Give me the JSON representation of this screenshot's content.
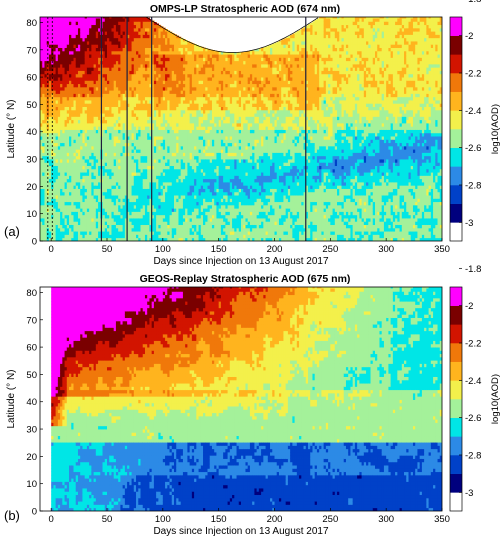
{
  "colors": {
    "levels": [
      "#ffffff",
      "#00007e",
      "#0041c8",
      "#2c8ae6",
      "#00e6e6",
      "#a4f19a",
      "#f3f04b",
      "#ffb41e",
      "#f0780a",
      "#d21400",
      "#7a0000",
      "#ff00ff"
    ]
  },
  "chart_data": [
    {
      "type": "heatmap",
      "panel_label": "(a)",
      "title": "OMPS-LP Stratospheric AOD (674 nm)",
      "xlabel": "Days since Injection on 13 August 2017",
      "ylabel": "Latitude (° N)",
      "xlim": [
        -10,
        350
      ],
      "ylim": [
        0,
        82
      ],
      "xticks": [
        0,
        50,
        100,
        150,
        200,
        250,
        300,
        350
      ],
      "yticks": [
        0,
        10,
        20,
        30,
        40,
        50,
        60,
        70,
        80
      ],
      "colorbar": {
        "label": "log10(AOD)",
        "ticks": [
          "-3",
          "-2.8",
          "-2.6",
          "-2.4",
          "-2.2",
          "-2",
          "-1.8"
        ]
      },
      "missing_data_days": [
        45,
        68,
        90,
        228
      ]
    },
    {
      "type": "heatmap",
      "panel_label": "(b)",
      "title": "GEOS-Replay Stratospheric AOD (675 nm)",
      "xlabel": "Days since Injection on 13 August 2017",
      "ylabel": "Latitude (° N)",
      "xlim": [
        -10,
        350
      ],
      "ylim": [
        0,
        82
      ],
      "xticks": [
        0,
        50,
        100,
        150,
        200,
        250,
        300,
        350
      ],
      "yticks": [
        0,
        10,
        20,
        30,
        40,
        50,
        60,
        70,
        80
      ],
      "colorbar": {
        "label": "log10(AOD)",
        "ticks": [
          "-3",
          "-2.8",
          "-2.6",
          "-2.4",
          "-2.2",
          "-2",
          "-1.8"
        ]
      }
    }
  ]
}
